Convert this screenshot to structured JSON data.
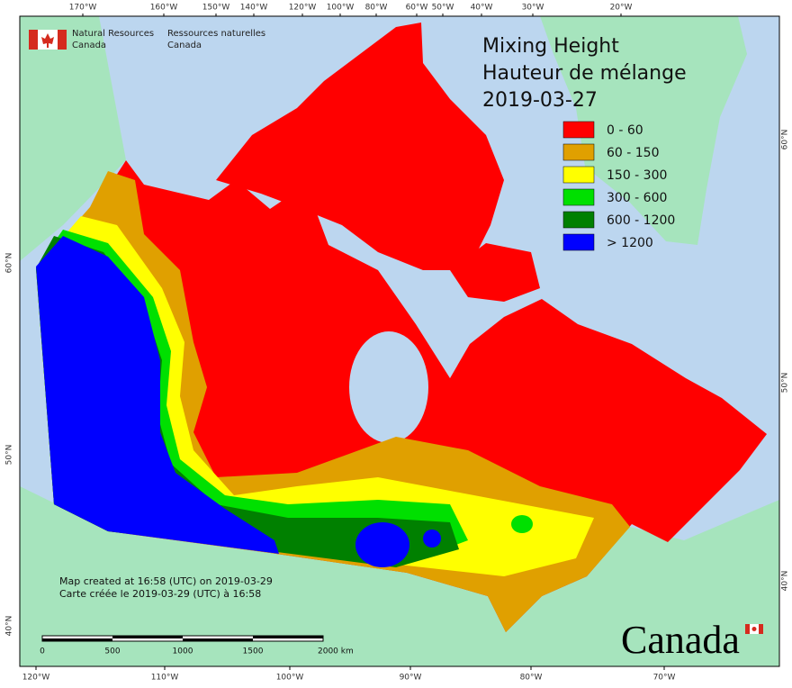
{
  "wordmark_left": [
    "Natural Resources",
    "Canada"
  ],
  "wordmark_right": [
    "Ressources naturelles",
    "Canada"
  ],
  "map": {
    "title": [
      "Mixing Height",
      "Hauteur de mélange"
    ],
    "date": "2019-03-27",
    "legend": [
      {
        "label": "0 - 60",
        "color": "#ff0000"
      },
      {
        "label": "60 - 150",
        "color": "#e0a000"
      },
      {
        "label": "150 - 300",
        "color": "#ffff00"
      },
      {
        "label": "300 - 600",
        "color": "#00e000"
      },
      {
        "label": "600 - 1200",
        "color": "#008000"
      },
      {
        "label": "> 1200",
        "color": "#0000ff"
      }
    ],
    "top_longitudes": [
      "170°W",
      "160°W",
      "150°W",
      "140°W",
      "120°W",
      "100°W",
      "80°W",
      "60°W",
      "50°W",
      "40°W",
      "30°W",
      "20°W"
    ],
    "bottom_longitudes": [
      "120°W",
      "110°W",
      "100°W",
      "90°W",
      "80°W",
      "70°W"
    ],
    "left_latitudes": [
      "60°N",
      "50°N",
      "40°N"
    ],
    "right_latitudes": [
      "60°N",
      "50°N",
      "40°N"
    ],
    "credits": [
      "Map created at 16:58 (UTC) on 2019-03-29",
      "Carte créée le 2019-03-29 (UTC) à 16:58"
    ],
    "scale_bar": [
      "0",
      "500",
      "1000",
      "1500",
      "2000 km"
    ],
    "logo": "Canada"
  }
}
